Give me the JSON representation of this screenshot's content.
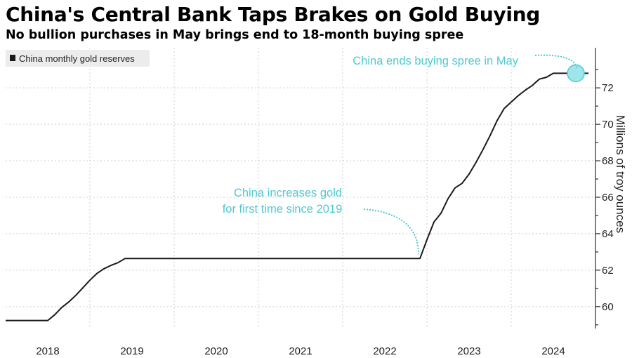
{
  "header": {
    "title": "China's Central Bank Taps Brakes on Gold Buying",
    "subtitle": "No bullion purchases in May brings end to 18-month buying spree"
  },
  "colors": {
    "line": "#1a1a1a",
    "annotation": "#4fc9d2",
    "highlight_fill": "#9fe6ea",
    "grid": "#cfcfcf",
    "legend_bg": "#ececec"
  },
  "chart_data": {
    "type": "line",
    "title": "China's Central Bank Taps Brakes on Gold Buying",
    "subtitle": "No bullion purchases in May brings end to 18-month buying spree",
    "xlabel": "",
    "ylabel": "Millions of troy ounces",
    "ylim": [
      58.8,
      74.2
    ],
    "xlim": [
      2017.5,
      2024.5
    ],
    "y_ticks": [
      60,
      62,
      64,
      66,
      68,
      70,
      72
    ],
    "x_ticks": [
      "2018",
      "2019",
      "2020",
      "2021",
      "2022",
      "2023",
      "2024"
    ],
    "legend": [
      "China monthly gold reserves"
    ],
    "legend_position": "top-left",
    "series": [
      {
        "name": "China monthly gold reserves",
        "x": [
          2017.5,
          2017.917,
          2018.0,
          2018.083,
          2018.167,
          2018.25,
          2018.333,
          2018.417,
          2018.5,
          2018.583,
          2018.667,
          2018.75,
          2018.833,
          2018.917,
          2019.0,
          2019.083,
          2019.167,
          2019.25,
          2019.333,
          2019.5,
          2020.0,
          2021.0,
          2022.0,
          2022.333,
          2022.417,
          2022.5,
          2022.583,
          2022.667,
          2022.75,
          2022.833,
          2022.917,
          2023.0,
          2023.083,
          2023.167,
          2023.25,
          2023.333,
          2023.417,
          2023.5,
          2023.583,
          2023.667,
          2023.75,
          2023.833,
          2023.917,
          2024.0,
          2024.083,
          2024.167,
          2024.25,
          2024.333,
          2024.417
        ],
        "values": [
          59.24,
          59.24,
          59.24,
          59.56,
          59.96,
          60.26,
          60.62,
          61.03,
          61.45,
          61.82,
          62.08,
          62.26,
          62.41,
          62.64,
          62.64,
          62.64,
          62.64,
          62.64,
          62.64,
          62.64,
          62.64,
          62.64,
          62.64,
          62.64,
          62.64,
          63.67,
          64.64,
          65.12,
          65.92,
          66.51,
          66.76,
          67.27,
          67.92,
          68.63,
          69.39,
          70.21,
          70.87,
          71.22,
          71.57,
          71.87,
          72.13,
          72.48,
          72.58,
          72.8,
          72.8,
          72.8,
          72.8,
          72.8,
          72.8
        ]
      }
    ],
    "annotations": [
      {
        "text_lines": [
          "China ends buying spree in May"
        ]
      },
      {
        "text_lines": [
          "China increases gold",
          "for first time since 2019"
        ]
      }
    ]
  }
}
